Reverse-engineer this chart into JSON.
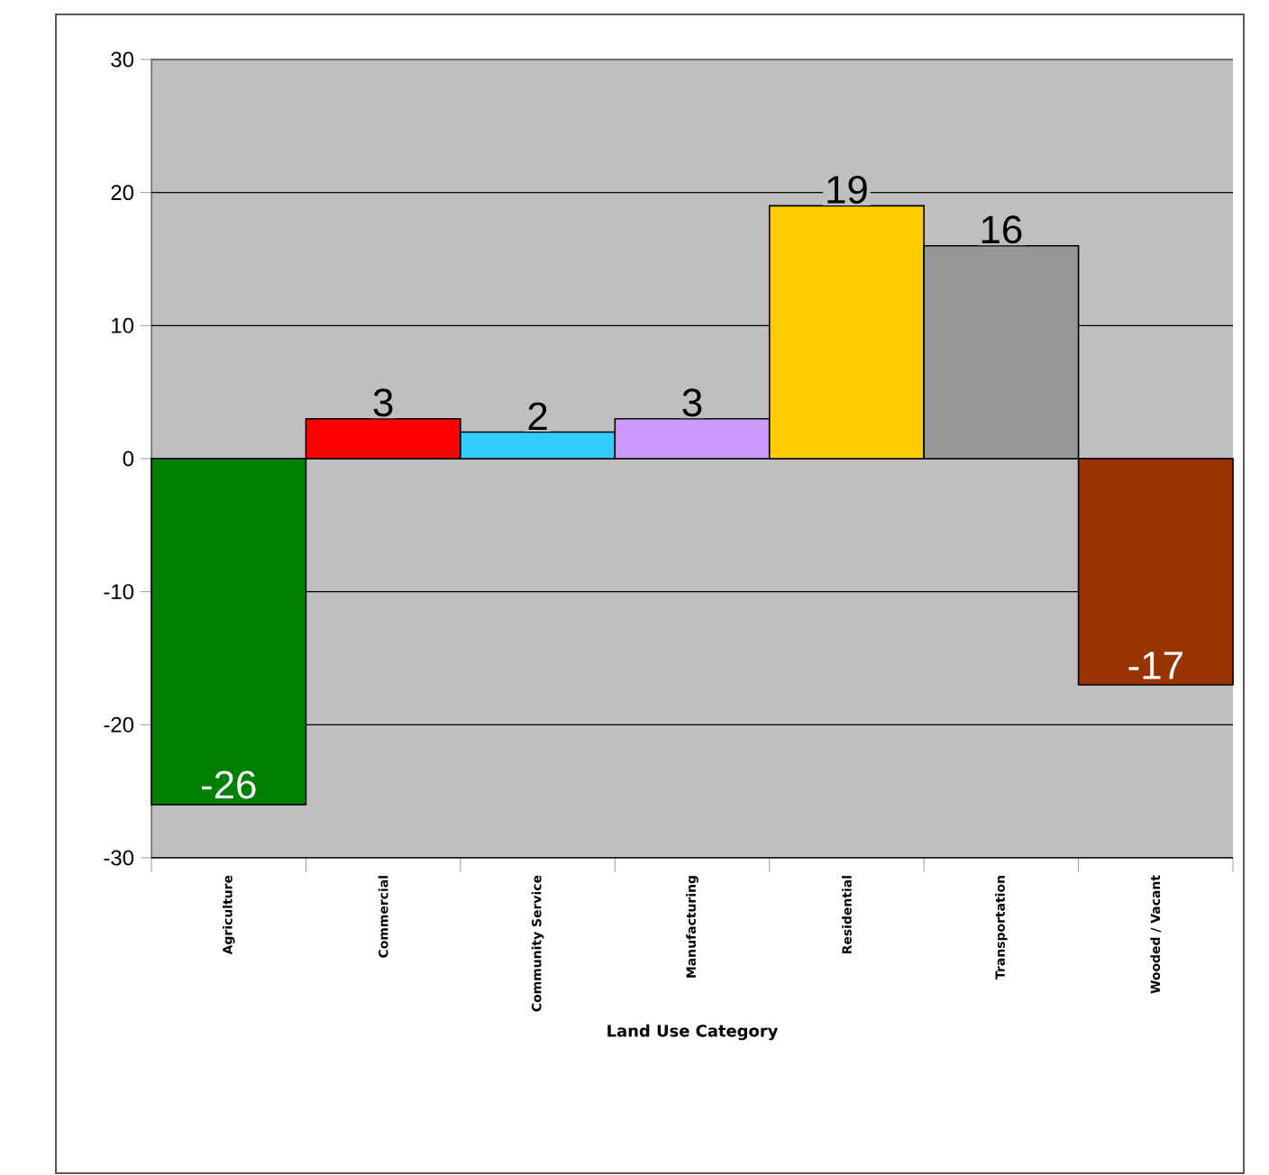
{
  "chart_data": {
    "type": "bar",
    "xlabel": "Land Use Category",
    "categories": [
      "Agriculture",
      "Commercial",
      "Community Service",
      "Manufacturing",
      "Residential",
      "Transportation",
      "Wooded / Vacant"
    ],
    "values": [
      -26,
      3,
      2,
      3,
      19,
      16,
      -17
    ],
    "colors": [
      "#008000",
      "#ff0000",
      "#33ccff",
      "#cc99ff",
      "#ffcc00",
      "#969696",
      "#993300"
    ],
    "ylim": [
      -30,
      30
    ],
    "yticks": [
      -30,
      -20,
      -10,
      0,
      10,
      20,
      30
    ],
    "grid": "y",
    "data_labels": true
  }
}
